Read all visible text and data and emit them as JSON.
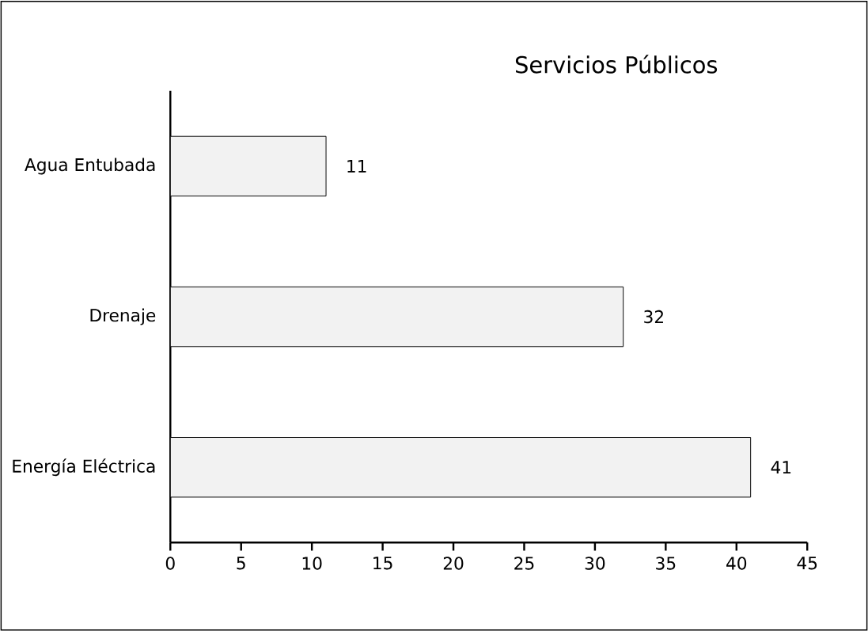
{
  "chart_data": {
    "type": "bar",
    "orientation": "horizontal",
    "title": "Servicios Públicos",
    "categories": [
      "Agua Entubada",
      "Drenaje",
      "Energía Eléctrica"
    ],
    "values": [
      11,
      32,
      41
    ],
    "value_labels": [
      "11",
      "32",
      "41"
    ],
    "color": "#f2f2f2",
    "xlim": [
      0,
      45
    ],
    "xticks": [
      0,
      5,
      10,
      15,
      20,
      25,
      30,
      35,
      40,
      45
    ],
    "grid": false
  }
}
